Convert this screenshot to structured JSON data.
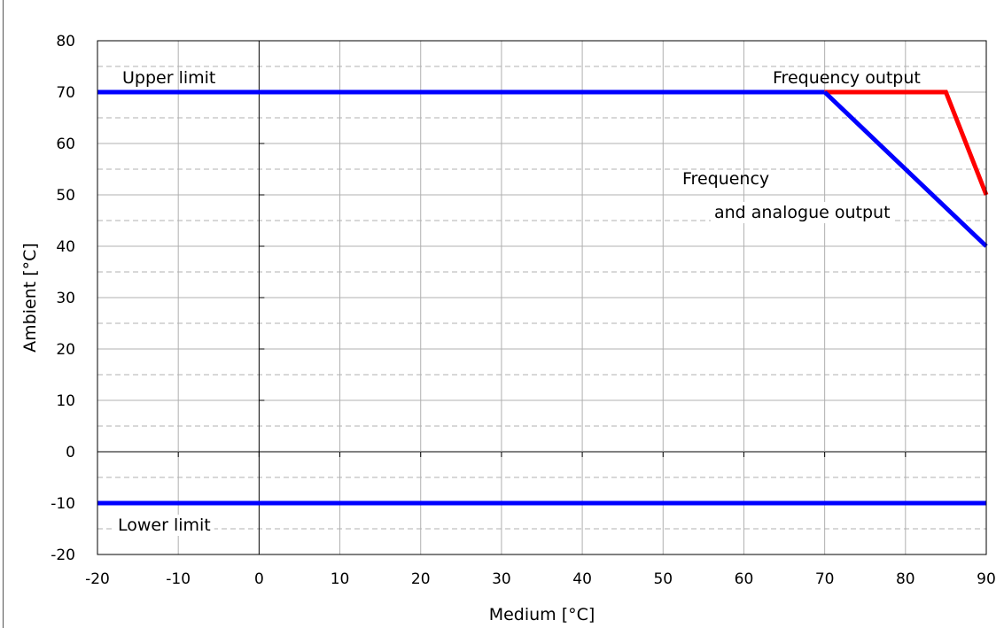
{
  "chart_data": {
    "type": "line",
    "xlabel": "Medium [°C]",
    "ylabel": "Ambient [°C]",
    "xlim": [
      -20,
      90
    ],
    "ylim": [
      -20,
      80
    ],
    "x_ticks": [
      -20,
      -10,
      0,
      10,
      20,
      30,
      40,
      50,
      60,
      70,
      80,
      90
    ],
    "y_ticks": [
      -20,
      -10,
      0,
      10,
      20,
      30,
      40,
      50,
      60,
      70,
      80
    ],
    "grid": {
      "major": true,
      "minor_y_dashed": true
    },
    "series": [
      {
        "name": "Upper limit",
        "color": "#0000ff",
        "x": [
          -20,
          70
        ],
        "y": [
          70,
          70
        ]
      },
      {
        "name": "Frequency output",
        "color": "#ff0000",
        "x": [
          70,
          85,
          90
        ],
        "y": [
          70,
          70,
          50
        ]
      },
      {
        "name": "Frequency and analogue output",
        "color": "#0000ff",
        "x": [
          70,
          90
        ],
        "y": [
          70,
          40
        ]
      },
      {
        "name": "Lower limit",
        "color": "#0000ff",
        "x": [
          -20,
          90
        ],
        "y": [
          -10,
          -10
        ]
      }
    ],
    "annotations": [
      {
        "text": "Upper limit"
      },
      {
        "text": "Frequency output"
      },
      {
        "text": "Frequency"
      },
      {
        "text": "and analogue output"
      },
      {
        "text": "Lower limit"
      }
    ]
  }
}
